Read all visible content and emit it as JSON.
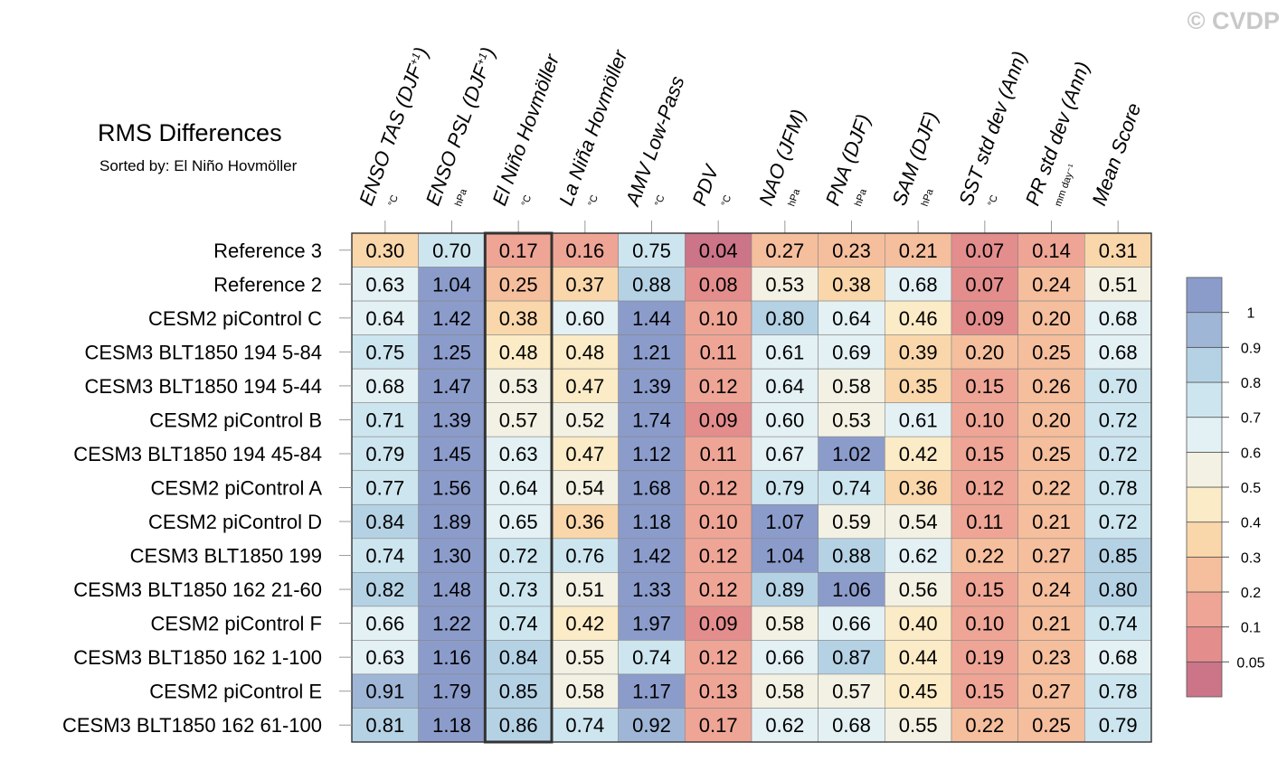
{
  "watermark": "© CVDP",
  "chart_data": {
    "type": "heatmap",
    "title": "RMS Differences",
    "subtitle": "Sorted by: El Niño Hovmöller",
    "highlight_column": 2,
    "columns": [
      {
        "name": "ENSO TAS (DJF",
        "sup": "+1",
        "close": ")",
        "unit": "°C"
      },
      {
        "name": "ENSO PSL (DJF",
        "sup": "+1",
        "close": ")",
        "unit": "hPa"
      },
      {
        "name": "El Niño Hovmöller",
        "sup": "",
        "close": "",
        "unit": "°C"
      },
      {
        "name": "La Niña Hovmöller",
        "sup": "",
        "close": "",
        "unit": "°C"
      },
      {
        "name": "AMV Low-Pass",
        "sup": "",
        "close": "",
        "unit": "°C"
      },
      {
        "name": "PDV",
        "sup": "",
        "close": "",
        "unit": "°C"
      },
      {
        "name": "NAO (JFM)",
        "sup": "",
        "close": "",
        "unit": "hPa"
      },
      {
        "name": "PNA (DJF)",
        "sup": "",
        "close": "",
        "unit": "hPa"
      },
      {
        "name": "SAM (DJF)",
        "sup": "",
        "close": "",
        "unit": "hPa"
      },
      {
        "name": "SST std dev (Ann)",
        "sup": "",
        "close": "",
        "unit": "°C"
      },
      {
        "name": "PR std dev (Ann)",
        "sup": "",
        "close": "",
        "unit": "mm day⁻¹"
      },
      {
        "name": "Mean Score",
        "sup": "",
        "close": "",
        "unit": ""
      }
    ],
    "rows": [
      "Reference 3",
      "Reference 2",
      "CESM2 piControl C",
      "CESM3 BLT1850 194 5-84",
      "CESM3 BLT1850 194 5-44",
      "CESM2 piControl B",
      "CESM3 BLT1850 194 45-84",
      "CESM2 piControl A",
      "CESM2 piControl D",
      "CESM3 BLT1850 199",
      "CESM3 BLT1850 162 21-60",
      "CESM2 piControl F",
      "CESM3 BLT1850 162 1-100",
      "CESM2 piControl E",
      "CESM3 BLT1850 162 61-100"
    ],
    "values": [
      [
        "0.30",
        "0.70",
        "0.17",
        "0.16",
        "0.75",
        "0.04",
        "0.27",
        "0.23",
        "0.21",
        "0.07",
        "0.14",
        "0.31"
      ],
      [
        "0.63",
        "1.04",
        "0.25",
        "0.37",
        "0.88",
        "0.08",
        "0.53",
        "0.38",
        "0.68",
        "0.07",
        "0.24",
        "0.51"
      ],
      [
        "0.64",
        "1.42",
        "0.38",
        "0.60",
        "1.44",
        "0.10",
        "0.80",
        "0.64",
        "0.46",
        "0.09",
        "0.20",
        "0.68"
      ],
      [
        "0.75",
        "1.25",
        "0.48",
        "0.48",
        "1.21",
        "0.11",
        "0.61",
        "0.69",
        "0.39",
        "0.20",
        "0.25",
        "0.68"
      ],
      [
        "0.68",
        "1.47",
        "0.53",
        "0.47",
        "1.39",
        "0.12",
        "0.64",
        "0.58",
        "0.35",
        "0.15",
        "0.26",
        "0.70"
      ],
      [
        "0.71",
        "1.39",
        "0.57",
        "0.52",
        "1.74",
        "0.09",
        "0.60",
        "0.53",
        "0.61",
        "0.10",
        "0.20",
        "0.72"
      ],
      [
        "0.79",
        "1.45",
        "0.63",
        "0.47",
        "1.12",
        "0.11",
        "0.67",
        "1.02",
        "0.42",
        "0.15",
        "0.25",
        "0.72"
      ],
      [
        "0.77",
        "1.56",
        "0.64",
        "0.54",
        "1.68",
        "0.12",
        "0.79",
        "0.74",
        "0.36",
        "0.12",
        "0.22",
        "0.78"
      ],
      [
        "0.84",
        "1.89",
        "0.65",
        "0.36",
        "1.18",
        "0.10",
        "1.07",
        "0.59",
        "0.54",
        "0.11",
        "0.21",
        "0.72"
      ],
      [
        "0.74",
        "1.30",
        "0.72",
        "0.76",
        "1.42",
        "0.12",
        "1.04",
        "0.88",
        "0.62",
        "0.22",
        "0.27",
        "0.85"
      ],
      [
        "0.82",
        "1.48",
        "0.73",
        "0.51",
        "1.33",
        "0.12",
        "0.89",
        "1.06",
        "0.56",
        "0.15",
        "0.24",
        "0.80"
      ],
      [
        "0.66",
        "1.22",
        "0.74",
        "0.42",
        "1.97",
        "0.09",
        "0.58",
        "0.66",
        "0.40",
        "0.10",
        "0.21",
        "0.74"
      ],
      [
        "0.63",
        "1.16",
        "0.84",
        "0.55",
        "0.74",
        "0.12",
        "0.66",
        "0.87",
        "0.44",
        "0.19",
        "0.23",
        "0.68"
      ],
      [
        "0.91",
        "1.79",
        "0.85",
        "0.58",
        "1.17",
        "0.13",
        "0.58",
        "0.57",
        "0.45",
        "0.15",
        "0.27",
        "0.78"
      ],
      [
        "0.81",
        "1.18",
        "0.86",
        "0.74",
        "0.92",
        "0.17",
        "0.62",
        "0.68",
        "0.55",
        "0.22",
        "0.25",
        "0.79"
      ]
    ],
    "colorbar": {
      "levels": [
        0.05,
        0.1,
        0.2,
        0.3,
        0.4,
        0.5,
        0.6,
        0.7,
        0.8,
        0.9,
        1
      ],
      "labels": [
        "0.05",
        "0.1",
        "0.2",
        "0.3",
        "0.4",
        "0.5",
        "0.6",
        "0.7",
        "0.8",
        "0.9",
        "1"
      ],
      "colors": [
        "#cc7488",
        "#e48d8d",
        "#efa595",
        "#f5be9d",
        "#f9d7ab",
        "#fbebc6",
        "#f2f1e3",
        "#e3f0f4",
        "#cde5ef",
        "#b5d2e5",
        "#9fb6d6",
        "#8b9ccb"
      ]
    }
  }
}
